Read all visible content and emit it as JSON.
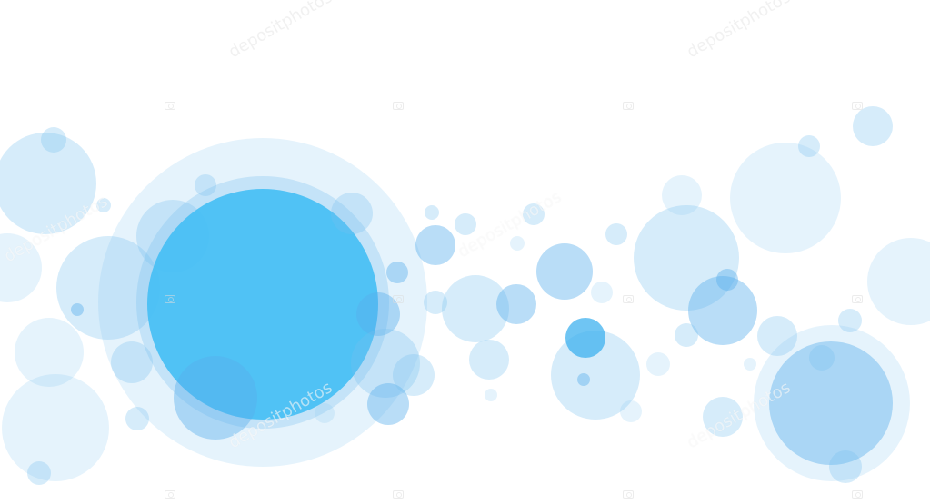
{
  "image": {
    "background_color": "#ffffff",
    "main_color": "#45bff4",
    "bubble_color": "#6ebef0",
    "watermark": "depositphotos"
  }
}
